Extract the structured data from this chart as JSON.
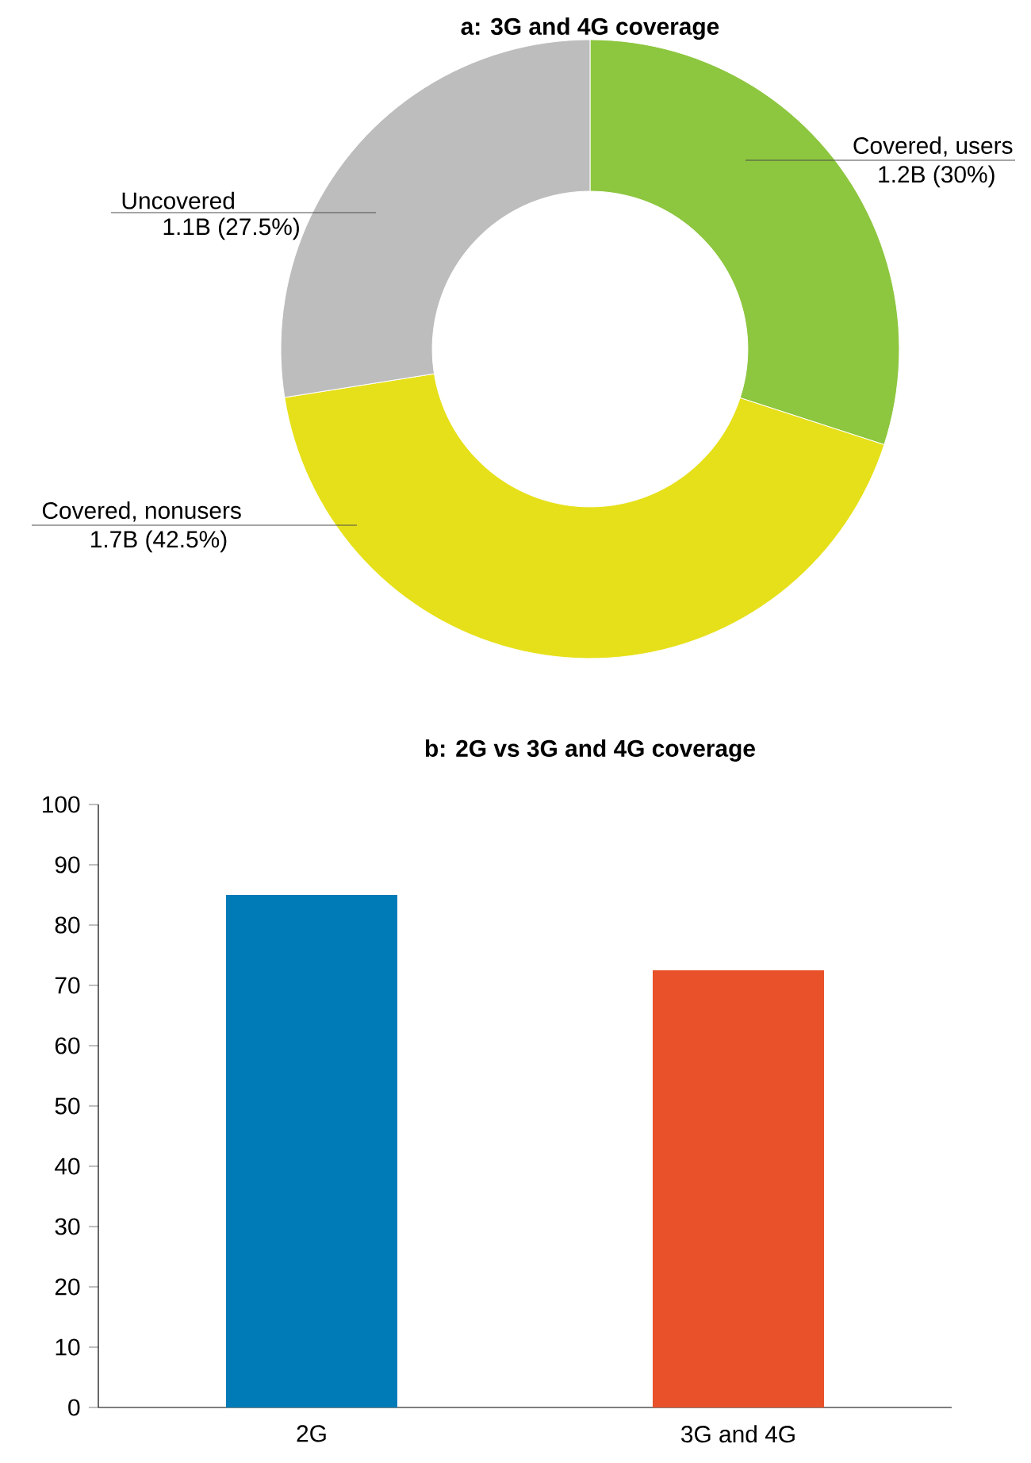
{
  "chart_data": [
    {
      "type": "donut",
      "title": "a: 3G and 4G coverage",
      "categories": [
        "Covered, users",
        "Covered, nonusers",
        "Uncovered"
      ],
      "values": [
        30,
        42.5,
        27.5
      ],
      "colors": [
        "#8dc63f",
        "#e6e01a",
        "#bdbdbd"
      ],
      "value_labels": [
        "1.2B (30%)",
        "1.7B (42.5%)",
        "1.1B (27.5%)"
      ]
    },
    {
      "type": "bar",
      "title": "b: 2G vs 3G and 4G coverage",
      "categories": [
        "2G",
        "3G and 4G"
      ],
      "values": [
        85,
        72.5
      ],
      "colors": [
        "#007bb8",
        "#e8512a"
      ],
      "ylim": [
        0,
        100
      ],
      "yticks": [
        0,
        10,
        20,
        30,
        40,
        50,
        60,
        70,
        80,
        90,
        100
      ]
    }
  ]
}
